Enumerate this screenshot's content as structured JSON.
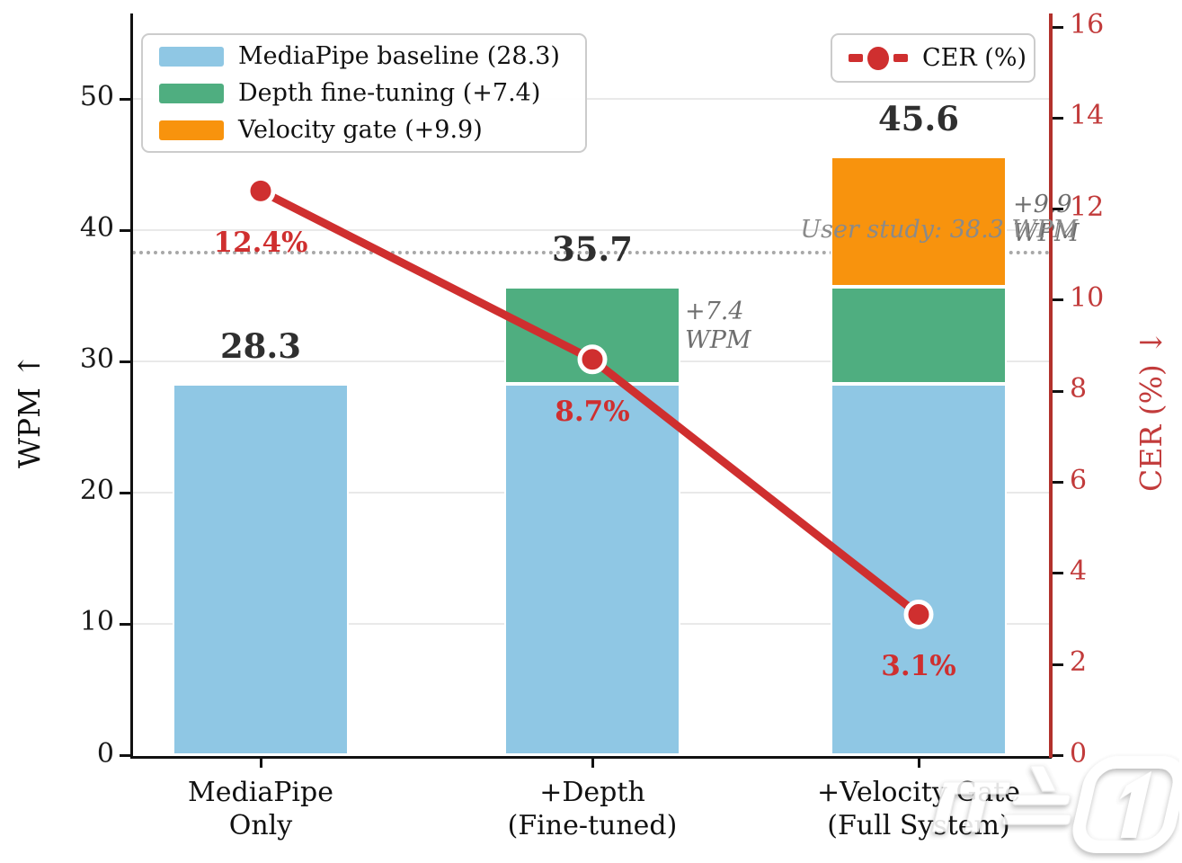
{
  "chart_data": {
    "type": "bar",
    "stacked": true,
    "categories": [
      "MediaPipe\nOnly",
      "+Depth\n(Fine-tuned)",
      "+Velocity Gate\n(Full System)"
    ],
    "series": [
      {
        "name": "MediaPipe baseline (28.3)",
        "values": [
          28.3,
          28.3,
          28.3
        ],
        "color": "#8fc7e4"
      },
      {
        "name": "Depth fine-tuning (+7.4)",
        "values": [
          0,
          7.4,
          7.4
        ],
        "color": "#4fae80"
      },
      {
        "name": "Velocity gate (+9.9)",
        "values": [
          0,
          0,
          9.9
        ],
        "color": "#f8930d"
      }
    ],
    "totals": [
      "28.3",
      "35.7",
      "45.6"
    ],
    "line_series": {
      "name": "CER (%)",
      "values": [
        12.4,
        8.7,
        3.1
      ],
      "labels": [
        "12.4%",
        "8.7%",
        "3.1%"
      ],
      "color": "#cf2f2f"
    },
    "ylabel_left": "WPM ↑",
    "ylabel_right": "CER (%) ↓",
    "ylim_left": [
      0,
      56
    ],
    "ylim_right": [
      0,
      16
    ],
    "yticks_left": [
      0,
      10,
      20,
      30,
      40,
      50
    ],
    "yticks_right": [
      0,
      2,
      4,
      6,
      8,
      10,
      12,
      14,
      16
    ],
    "reference_line": {
      "value": 38.3,
      "label": "User study: 38.3 WPM"
    },
    "annotations": [
      {
        "text": "+7.4\nWPM"
      },
      {
        "text": "+9.9\nWPM"
      }
    ],
    "grid": "horizontal",
    "legend_position_bars": "upper left",
    "legend_position_line": "upper right"
  },
  "colors": {
    "bar_blue": "#8fc7e4",
    "bar_green": "#4fae80",
    "bar_orange": "#f8930d",
    "line_red": "#cf2f2f",
    "right_axis_red": "#b2312c",
    "right_tick_red": "#c23b3b",
    "grid_gray": "#e9e9e9",
    "reference_gray": "#a8a8a8",
    "annotation_gray": "#6e6e6e"
  },
  "watermark_text": "뉴스1"
}
